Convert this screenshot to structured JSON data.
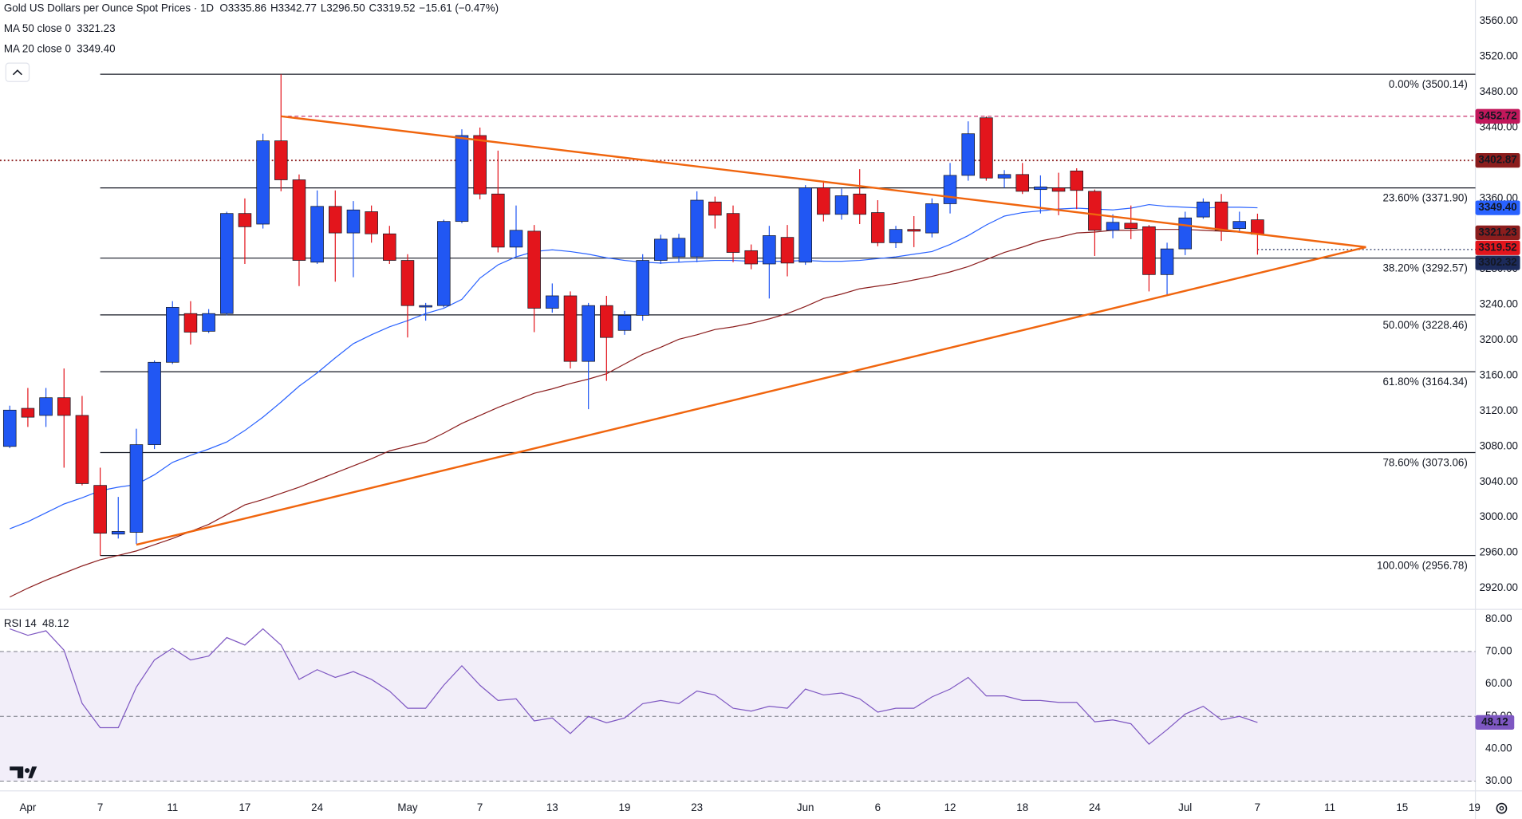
{
  "header": {
    "title": "Gold US Dollars per Ounce Spot Prices · 1D",
    "ohlc": [
      {
        "key": "O",
        "value": "3335.86"
      },
      {
        "key": "H",
        "value": "3342.77"
      },
      {
        "key": "L",
        "value": "3296.50"
      },
      {
        "key": "C",
        "value": "3319.52"
      }
    ],
    "change": "−15.61 (−0.47%)"
  },
  "chart_data": [
    {
      "type": "candlestick",
      "up_color": "#2157f3",
      "down_color": "#e3151c",
      "open": [
        3080,
        3123,
        3115,
        3135,
        3115,
        3036,
        2981,
        2983,
        3082,
        3175,
        3230,
        3210,
        3230,
        3343,
        3331,
        3425,
        3381,
        3288,
        3351,
        3321,
        3345,
        3320,
        3290,
        3238,
        3239,
        3334,
        3431,
        3365,
        3305,
        3323,
        3236,
        3250,
        3176,
        3239,
        3211,
        3228,
        3290,
        3294,
        3294,
        3356,
        3343,
        3301,
        3286,
        3316,
        3288,
        3372,
        3342,
        3365,
        3344,
        3310,
        3325,
        3321,
        3354,
        3386,
        3451,
        3383,
        3387,
        3370,
        3372,
        3391,
        3368,
        3324,
        3332,
        3328,
        3274,
        3303,
        3339,
        3356,
        3326,
        3335.86
      ],
      "high": [
        3126,
        3146,
        3146,
        3168,
        3137,
        3056,
        3023,
        3100,
        3177,
        3244,
        3244,
        3235,
        3345,
        3360,
        3433,
        3500,
        3387,
        3369,
        3369,
        3357,
        3352,
        3329,
        3297,
        3242,
        3336,
        3438,
        3440,
        3414,
        3352,
        3330,
        3264,
        3255,
        3242,
        3250,
        3233,
        3297,
        3319,
        3320,
        3368,
        3362,
        3352,
        3308,
        3329,
        3330,
        3375,
        3380,
        3371,
        3393,
        3358,
        3329,
        3340,
        3360,
        3400,
        3447,
        3452.72,
        3392,
        3400,
        3386,
        3389,
        3394,
        3370,
        3342,
        3352,
        3330,
        3310,
        3345,
        3360,
        3365,
        3345,
        3342.77
      ],
      "low": [
        3078,
        3102,
        3102,
        3056,
        3036,
        2956.78,
        2976,
        2970,
        3077,
        3173,
        3195,
        3208,
        3228,
        3286,
        3326,
        3368,
        3261,
        3286,
        3266,
        3271,
        3310,
        3286,
        3203,
        3222,
        3237,
        3332,
        3359,
        3299,
        3294,
        3209,
        3231,
        3168,
        3122,
        3154,
        3206,
        3222,
        3286,
        3288,
        3288,
        3326,
        3288,
        3280,
        3247,
        3272,
        3285,
        3334,
        3336,
        3331,
        3306,
        3304,
        3305,
        3316,
        3343,
        3380,
        3380,
        3372,
        3365,
        3343,
        3341,
        3348,
        3295,
        3315,
        3314,
        3255,
        3250,
        3296,
        3337,
        3312,
        3323,
        3296.5
      ],
      "close": [
        3121,
        3113,
        3135,
        3115,
        3038,
        2982,
        2984,
        3082,
        3175,
        3237,
        3209,
        3230,
        3343,
        3328,
        3425,
        3381,
        3290,
        3351,
        3321,
        3347,
        3320,
        3290,
        3239,
        3239,
        3334,
        3431,
        3365,
        3305,
        3324,
        3236,
        3250,
        3176,
        3239,
        3203,
        3228,
        3290,
        3314,
        3315,
        3358,
        3341,
        3299,
        3286,
        3318,
        3287,
        3372,
        3342,
        3363,
        3342,
        3310,
        3325,
        3323,
        3354,
        3386,
        3433,
        3383,
        3387,
        3368,
        3373,
        3368,
        3369,
        3324,
        3333,
        3326,
        3274,
        3303,
        3338,
        3356,
        3324,
        3334,
        3319.52
      ],
      "series": [
        {
          "name": "MA 50 close 0",
          "legend_value": "3321.23",
          "color": "#8b1d1d",
          "values": [
            2910,
            2920,
            2929,
            2937,
            2945,
            2952,
            2957,
            2962,
            2969,
            2976,
            2984,
            2992,
            3003,
            3014,
            3020,
            3027,
            3034,
            3042,
            3050,
            3058,
            3066,
            3075,
            3080,
            3085,
            3095,
            3106,
            3115,
            3124,
            3132,
            3140,
            3145,
            3151,
            3156,
            3162,
            3173,
            3184,
            3192,
            3201,
            3206,
            3212,
            3215,
            3219,
            3224,
            3230,
            3238,
            3247,
            3252,
            3258,
            3261,
            3264,
            3268,
            3272,
            3277,
            3283,
            3291,
            3299,
            3305,
            3312,
            3316,
            3321,
            3322,
            3324,
            3324,
            3325,
            3325,
            3325,
            3324,
            3323,
            3322,
            3321.23
          ]
        },
        {
          "name": "MA 20 close 0",
          "legend_value": "3349.40",
          "color": "#2962ff",
          "values": [
            2987,
            2995,
            3005,
            3015,
            3022,
            3030,
            3034,
            3037,
            3048,
            3062,
            3070,
            3077,
            3085,
            3098,
            3113,
            3130,
            3148,
            3163,
            3180,
            3196,
            3206,
            3215,
            3222,
            3230,
            3236,
            3246,
            3270,
            3285,
            3294,
            3300,
            3302,
            3300,
            3297,
            3293,
            3290,
            3288,
            3287,
            3288,
            3289,
            3290,
            3290,
            3289,
            3289,
            3289,
            3290,
            3289,
            3289,
            3290,
            3292,
            3294,
            3297,
            3300,
            3308,
            3318,
            3330,
            3340,
            3344,
            3346,
            3348,
            3349,
            3348,
            3347,
            3349,
            3353,
            3351,
            3350,
            3349,
            3350,
            3350,
            3349.4
          ]
        }
      ],
      "fib_start": 5,
      "fib_levels": [
        {
          "value": 3500.14,
          "label": "0.00% (3500.14)"
        },
        {
          "value": 3371.9,
          "label": "23.60% (3371.90)"
        },
        {
          "value": 3292.57,
          "label": "38.20% (3292.57)"
        },
        {
          "value": 3228.46,
          "label": "50.00% (3228.46)"
        },
        {
          "value": 3164.34,
          "label": "61.80% (3164.34)"
        },
        {
          "value": 3073.06,
          "label": "78.60% (3073.06)"
        },
        {
          "value": 2956.78,
          "label": "100.00% (2956.78)"
        }
      ],
      "markers": [
        {
          "value": 3452.72,
          "label": "3452.72",
          "color": "#c2185b",
          "line": "dashed",
          "from": 15
        },
        {
          "value": 3402.87,
          "label": "3402.87",
          "color": "#8b1d1d",
          "line": "dotted"
        },
        {
          "value": 3349.4,
          "label": "3349.40",
          "color": "#2962ff"
        },
        {
          "value": 3321.23,
          "label": "3321.23",
          "color": "#8b1d1d"
        },
        {
          "value": 3319.52,
          "label": "3319.52",
          "color": "#e3151c"
        },
        {
          "value": 3302.32,
          "label": "3302.32",
          "color": "#1c2a5a",
          "line": "dotted",
          "from": 69
        }
      ],
      "trendlines": [
        {
          "color": "#f0650e",
          "from": [
            15,
            3452.72
          ],
          "to": [
            75,
            3305
          ]
        },
        {
          "color": "#f0650e",
          "from": [
            7,
            2969
          ],
          "to": [
            75,
            3305
          ]
        }
      ],
      "xlim": [
        -0.54,
        81.05
      ],
      "xticks": [
        {
          "value": 1,
          "label": "Apr"
        },
        {
          "value": 5,
          "label": "7"
        },
        {
          "value": 9,
          "label": "11"
        },
        {
          "value": 13,
          "label": "17"
        },
        {
          "value": 17,
          "label": "24"
        },
        {
          "value": 22,
          "label": "May"
        },
        {
          "value": 26,
          "label": "7"
        },
        {
          "value": 30,
          "label": "13"
        },
        {
          "value": 34,
          "label": "19"
        },
        {
          "value": 38,
          "label": "23"
        },
        {
          "value": 44,
          "label": "Jun"
        },
        {
          "value": 48,
          "label": "6"
        },
        {
          "value": 52,
          "label": "12"
        },
        {
          "value": 56,
          "label": "18"
        },
        {
          "value": 60,
          "label": "24"
        },
        {
          "value": 65,
          "label": "Jul"
        },
        {
          "value": 69,
          "label": "7"
        },
        {
          "value": 73,
          "label": "11"
        },
        {
          "value": 77,
          "label": "15"
        },
        {
          "value": 81,
          "label": "19"
        }
      ],
      "ylim": [
        2896,
        3584
      ],
      "yticks": [
        {
          "value": 2920,
          "label": "2920.00"
        },
        {
          "value": 2960,
          "label": "2960.00"
        },
        {
          "value": 3000,
          "label": "3000.00"
        },
        {
          "value": 3040,
          "label": "3040.00"
        },
        {
          "value": 3080,
          "label": "3080.00"
        },
        {
          "value": 3120,
          "label": "3120.00"
        },
        {
          "value": 3160,
          "label": "3160.00"
        },
        {
          "value": 3200,
          "label": "3200.00"
        },
        {
          "value": 3240,
          "label": "3240.00"
        },
        {
          "value": 3280,
          "label": "3280.00"
        },
        {
          "value": 3320,
          "label": "3320.00"
        },
        {
          "value": 3360,
          "label": "3360.00"
        },
        {
          "value": 3400,
          "label": "3400.00"
        },
        {
          "value": 3440,
          "label": "3440.00"
        },
        {
          "value": 3480,
          "label": "3480.00"
        },
        {
          "value": 3520,
          "label": "3520.00"
        },
        {
          "value": 3560,
          "label": "3560.00"
        }
      ],
      "grid": false
    },
    {
      "type": "line",
      "title": "RSI 14",
      "legend_value": "48.12",
      "color": "#7e57c2",
      "value_badge": "48.12",
      "values": [
        77,
        75,
        76.4,
        70.4,
        54,
        46.5,
        46.5,
        59,
        67.4,
        71,
        67.4,
        68.6,
        74.3,
        72,
        77,
        72,
        61.4,
        64.4,
        62,
        63.8,
        61.4,
        57.8,
        52.5,
        52.5,
        59.6,
        65.6,
        59.6,
        54.9,
        55.4,
        48.6,
        49.5,
        44.7,
        50,
        48,
        49.5,
        53.9,
        54.9,
        53.9,
        57.8,
        56.6,
        52.5,
        51.6,
        53.1,
        52.5,
        58.4,
        56.6,
        57.2,
        55.4,
        51.3,
        52.5,
        52.5,
        56,
        58.4,
        62,
        56.3,
        56.3,
        54.9,
        54.9,
        54.3,
        54.3,
        48.3,
        48.9,
        47.7,
        41.4,
        45.9,
        50.7,
        53.1,
        48.9,
        50,
        48.12
      ],
      "band": [
        30,
        70
      ],
      "midline": 50,
      "ylim": [
        27,
        83
      ],
      "yticks": [
        {
          "value": 30,
          "label": "30.00"
        },
        {
          "value": 40,
          "label": "40.00"
        },
        {
          "value": 50,
          "label": "50.00"
        },
        {
          "value": 60,
          "label": "60.00"
        },
        {
          "value": 70,
          "label": "70.00"
        },
        {
          "value": 80,
          "label": "80.00"
        }
      ],
      "grid": false
    }
  ]
}
